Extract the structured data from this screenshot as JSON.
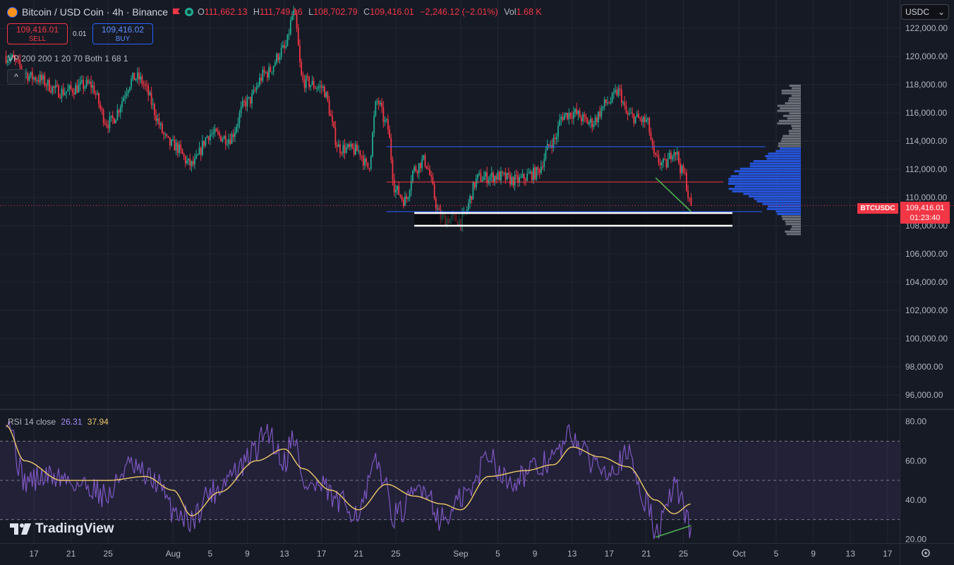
{
  "header": {
    "symbol": "Bitcoin / USD Coin · 4h · Binance",
    "open_label": "O",
    "open": "111,662.13",
    "high_label": "H",
    "high": "111,749.16",
    "low_label": "L",
    "low": "108,702.79",
    "close_label": "C",
    "close": "109,416.01",
    "change": "−2,246.12 (−2.01%)",
    "vol_label": "Vol",
    "vol": "1.68 K"
  },
  "trade": {
    "sell_price": "109,416.01",
    "sell_label": "SELL",
    "spread": "0.01",
    "buy_price": "109,416.02",
    "buy_label": "BUY"
  },
  "indicator": {
    "vp_label": "VP 200 200 1 20 70 Both 1 68 1",
    "collapse": "^"
  },
  "symbol_select": {
    "value": "USDC",
    "arrow": "⌄"
  },
  "rsi": {
    "label": "RSI 14 close",
    "rsi_value": "26.31",
    "ma_value": "37.94"
  },
  "logo": {
    "text": "TradingView"
  },
  "last_price": {
    "symbol": "BTCUSDC",
    "price": "109,416.01",
    "countdown": "01:23:40"
  },
  "colors": {
    "up": "#22ab94",
    "down": "#f23645",
    "rsi_line": "#7e57c2",
    "rsi_ma": "#f0c96a",
    "vp_blue": "#2962ff",
    "vp_grey": "#8a8d96",
    "level_blue": "#2962ff",
    "level_red": "#f23645",
    "trend_green": "#4caf50"
  },
  "chart_data": [
    {
      "type": "candlestick",
      "title": "Bitcoin / USD Coin · 4h · Binance",
      "ylim": [
        95000,
        124000
      ],
      "y_ticks": [
        "122,000.00",
        "120,000.00",
        "118,000.00",
        "116,000.00",
        "114,000.00",
        "112,000.00",
        "110,000.00",
        "108,000.00",
        "106,000.00",
        "104,000.00",
        "102,000.00",
        "100,000.00",
        "98,000.00",
        "96,000.00"
      ],
      "y_tick_values": [
        122000,
        120000,
        118000,
        116000,
        114000,
        112000,
        110000,
        108000,
        106000,
        104000,
        102000,
        100000,
        98000,
        96000
      ],
      "x_ticks": [
        "17",
        "21",
        "25",
        "Aug",
        "5",
        "9",
        "13",
        "17",
        "21",
        "25",
        "Sep",
        "5",
        "9",
        "13",
        "17",
        "21",
        "25",
        "Oct",
        "5",
        "9",
        "13",
        "17"
      ],
      "anchors": [
        {
          "x": "Jul 14",
          "y": 120000
        },
        {
          "x": "Jul 17",
          "y": 118500
        },
        {
          "x": "Jul 20",
          "y": 117500
        },
        {
          "x": "Jul 23",
          "y": 118000
        },
        {
          "x": "Jul 25",
          "y": 115300
        },
        {
          "x": "Jul 28",
          "y": 118500
        },
        {
          "x": "Aug 1",
          "y": 113700
        },
        {
          "x": "Aug 3",
          "y": 112300
        },
        {
          "x": "Aug 5",
          "y": 114500
        },
        {
          "x": "Aug 7",
          "y": 114200
        },
        {
          "x": "Aug 9",
          "y": 116800
        },
        {
          "x": "Aug 11",
          "y": 118800
        },
        {
          "x": "Aug 13",
          "y": 120500
        },
        {
          "x": "Aug 14",
          "y": 123000
        },
        {
          "x": "Aug 15",
          "y": 118200
        },
        {
          "x": "Aug 17",
          "y": 117800
        },
        {
          "x": "Aug 19",
          "y": 113500
        },
        {
          "x": "Aug 21",
          "y": 113300
        },
        {
          "x": "Aug 22",
          "y": 112100
        },
        {
          "x": "Aug 23",
          "y": 116800
        },
        {
          "x": "Aug 24",
          "y": 115200
        },
        {
          "x": "Aug 25",
          "y": 110500
        },
        {
          "x": "Aug 26",
          "y": 109800
        },
        {
          "x": "Aug 27",
          "y": 112000
        },
        {
          "x": "Aug 28",
          "y": 112600
        },
        {
          "x": "Aug 30",
          "y": 108500
        },
        {
          "x": "Sep 1",
          "y": 108400
        },
        {
          "x": "Sep 3",
          "y": 111400
        },
        {
          "x": "Sep 5",
          "y": 111500
        },
        {
          "x": "Sep 7",
          "y": 111200
        },
        {
          "x": "Sep 9",
          "y": 111700
        },
        {
          "x": "Sep 11",
          "y": 114000
        },
        {
          "x": "Sep 12",
          "y": 115800
        },
        {
          "x": "Sep 13",
          "y": 116000
        },
        {
          "x": "Sep 15",
          "y": 115300
        },
        {
          "x": "Sep 17",
          "y": 116800
        },
        {
          "x": "Sep 18",
          "y": 117500
        },
        {
          "x": "Sep 19",
          "y": 115800
        },
        {
          "x": "Sep 21",
          "y": 115400
        },
        {
          "x": "Sep 22",
          "y": 112700
        },
        {
          "x": "Sep 23",
          "y": 112300
        },
        {
          "x": "Sep 24",
          "y": 113400
        },
        {
          "x": "Sep 25",
          "y": 111700
        },
        {
          "x": "Sep 25 20:00",
          "y": 109416
        }
      ],
      "levels": [
        {
          "name": "value-area-high",
          "y": 113600,
          "color": "#2962ff"
        },
        {
          "name": "point-of-control",
          "y": 111100,
          "color": "#f23645"
        },
        {
          "name": "value-area-low",
          "y": 109000,
          "color": "#2962ff"
        },
        {
          "name": "support-upper",
          "y": 108900,
          "color": "#ffffff"
        },
        {
          "name": "support-lower",
          "y": 108000,
          "color": "#ffffff"
        }
      ],
      "trend_line": [
        {
          "x": "Sep 22",
          "y": 111400
        },
        {
          "x": "Sep 25 20:00",
          "y": 109000
        }
      ],
      "volume_profile": {
        "ylim": [
          107300,
          118000
        ],
        "buckets": 60,
        "value_area": [
          108700,
          113500
        ],
        "poc": 111100
      }
    },
    {
      "type": "line",
      "title": "RSI 14 close",
      "ylim": [
        18,
        86
      ],
      "y_ticks": [
        "80.00",
        "60.00",
        "40.00",
        "20.00"
      ],
      "y_tick_values": [
        80,
        60,
        40,
        20
      ],
      "bands": [
        70,
        50,
        30
      ],
      "series": [
        {
          "name": "RSI 14 close",
          "anchors": [
            {
              "x": "Jul 14",
              "y": 84
            },
            {
              "x": "Jul 16",
              "y": 50
            },
            {
              "x": "Jul 19",
              "y": 52
            },
            {
              "x": "Jul 23",
              "y": 47
            },
            {
              "x": "Jul 25",
              "y": 42
            },
            {
              "x": "Jul 27",
              "y": 57
            },
            {
              "x": "Jul 30",
              "y": 50
            },
            {
              "x": "Aug 1",
              "y": 35
            },
            {
              "x": "Aug 3",
              "y": 30
            },
            {
              "x": "Aug 5",
              "y": 44
            },
            {
              "x": "Aug 8",
              "y": 55
            },
            {
              "x": "Aug 10",
              "y": 66
            },
            {
              "x": "Aug 11",
              "y": 76
            },
            {
              "x": "Aug 13",
              "y": 60
            },
            {
              "x": "Aug 14",
              "y": 74
            },
            {
              "x": "Aug 15",
              "y": 48
            },
            {
              "x": "Aug 17",
              "y": 46
            },
            {
              "x": "Aug 19",
              "y": 38
            },
            {
              "x": "Aug 21",
              "y": 34
            },
            {
              "x": "Aug 23",
              "y": 58
            },
            {
              "x": "Aug 25",
              "y": 32
            },
            {
              "x": "Aug 28",
              "y": 47
            },
            {
              "x": "Aug 30",
              "y": 30
            },
            {
              "x": "Sep 2",
              "y": 44
            },
            {
              "x": "Sep 4",
              "y": 64
            },
            {
              "x": "Sep 6",
              "y": 50
            },
            {
              "x": "Sep 9",
              "y": 55
            },
            {
              "x": "Sep 11",
              "y": 62
            },
            {
              "x": "Sep 13",
              "y": 73
            },
            {
              "x": "Sep 15",
              "y": 60
            },
            {
              "x": "Sep 17",
              "y": 57
            },
            {
              "x": "Sep 19",
              "y": 62
            },
            {
              "x": "Sep 21",
              "y": 40
            },
            {
              "x": "Sep 22",
              "y": 23
            },
            {
              "x": "Sep 23",
              "y": 32
            },
            {
              "x": "Sep 24",
              "y": 48
            },
            {
              "x": "Sep 25 20:00",
              "y": 26.31
            }
          ]
        },
        {
          "name": "RSI MA",
          "anchors": [
            {
              "x": "Jul 14",
              "y": 78
            },
            {
              "x": "Jul 16",
              "y": 60
            },
            {
              "x": "Jul 20",
              "y": 50
            },
            {
              "x": "Jul 25",
              "y": 50
            },
            {
              "x": "Jul 29",
              "y": 52
            },
            {
              "x": "Aug 1",
              "y": 45
            },
            {
              "x": "Aug 3",
              "y": 32
            },
            {
              "x": "Aug 6",
              "y": 44
            },
            {
              "x": "Aug 10",
              "y": 60
            },
            {
              "x": "Aug 13",
              "y": 66
            },
            {
              "x": "Aug 15",
              "y": 56
            },
            {
              "x": "Aug 18",
              "y": 45
            },
            {
              "x": "Aug 21",
              "y": 35
            },
            {
              "x": "Aug 24",
              "y": 48
            },
            {
              "x": "Aug 27",
              "y": 42
            },
            {
              "x": "Aug 30",
              "y": 38
            },
            {
              "x": "Sep 1",
              "y": 35
            },
            {
              "x": "Sep 4",
              "y": 52
            },
            {
              "x": "Sep 8",
              "y": 55
            },
            {
              "x": "Sep 11",
              "y": 58
            },
            {
              "x": "Sep 13",
              "y": 67
            },
            {
              "x": "Sep 16",
              "y": 62
            },
            {
              "x": "Sep 19",
              "y": 57
            },
            {
              "x": "Sep 22",
              "y": 40
            },
            {
              "x": "Sep 24",
              "y": 33
            },
            {
              "x": "Sep 25 20:00",
              "y": 37.94
            }
          ]
        }
      ],
      "divergence_line": [
        {
          "x": "Sep 22",
          "y": 21
        },
        {
          "x": "Sep 25 20:00",
          "y": 27
        }
      ]
    }
  ]
}
